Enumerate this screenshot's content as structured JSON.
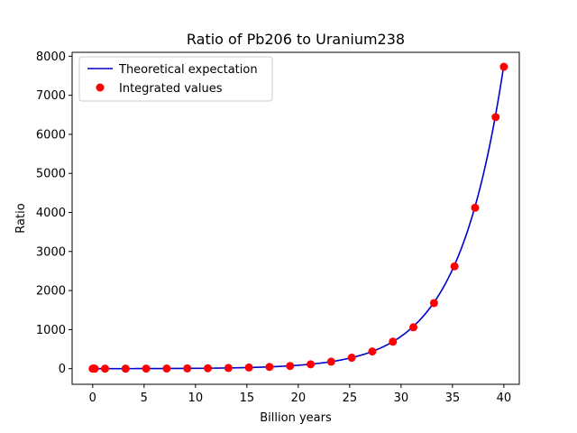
{
  "chart_data": {
    "type": "line",
    "title": "Ratio of Pb206 to Uranium238",
    "xlabel": "Billion years",
    "ylabel": "Ratio",
    "xlim": [
      -2,
      41.5
    ],
    "ylim": [
      -400,
      8100
    ],
    "xticks": [
      0,
      5,
      10,
      15,
      20,
      25,
      30,
      35,
      40
    ],
    "yticks": [
      0,
      1000,
      2000,
      3000,
      4000,
      5000,
      6000,
      7000,
      8000
    ],
    "grid": false,
    "legend_position": "top-left",
    "series": [
      {
        "name": "Theoretical expectation",
        "kind": "line",
        "color": "#0000cc",
        "model": "exp(lambda*t) - 1",
        "lambda_per_billion_years": 0.224
      },
      {
        "name": "Integrated values",
        "kind": "scatter",
        "color": "#ff0000",
        "x": [
          0,
          0.05,
          0.1,
          0.2,
          1.2,
          3.2,
          5.2,
          7.2,
          9.2,
          11.2,
          13.2,
          15.2,
          17.2,
          19.2,
          21.2,
          23.2,
          25.2,
          27.2,
          29.2,
          31.2,
          33.2,
          35.2,
          37.2,
          39.2,
          40
        ],
        "y": [
          0,
          0,
          0,
          0,
          0,
          1,
          2,
          4,
          6,
          11,
          18,
          29,
          46,
          69,
          112,
          180,
          280,
          440,
          690,
          1060,
          1680,
          2620,
          4120,
          6440,
          7730
        ]
      }
    ]
  }
}
